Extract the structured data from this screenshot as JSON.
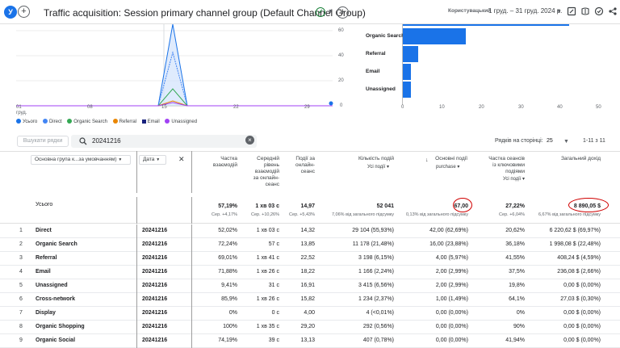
{
  "header": {
    "avatar_letter": "У",
    "title": "Traffic acquisition: Session primary channel group (Default Channel Group)",
    "user_label": "Користувацький",
    "date_range": "1 груд. – 31 груд. 2024 р."
  },
  "line_chart": {
    "x_ticks": [
      "01",
      "08",
      "15",
      "22",
      "29"
    ],
    "x_tick_sub": "груд.",
    "y_ticks": [
      "60",
      "40",
      "20",
      "0"
    ]
  },
  "bar_chart": {
    "categories": [
      "Organic Search",
      "Referral",
      "Email",
      "Unassigned"
    ],
    "values": [
      16,
      4,
      2,
      2
    ],
    "partial_top_value": 42,
    "x_ticks": [
      "0",
      "10",
      "20",
      "30",
      "40",
      "50"
    ]
  },
  "legend": [
    {
      "label": "Усього",
      "color": "#1a73e8"
    },
    {
      "label": "Direct",
      "color": "#4285f4"
    },
    {
      "label": "Organic Search",
      "color": "#34a853"
    },
    {
      "label": "Referral",
      "color": "#ea8600"
    },
    {
      "label": "Email",
      "color": "#1a237e"
    },
    {
      "label": "Unassigned",
      "color": "#a142f4"
    }
  ],
  "toolbar": {
    "rows_search_placeholder": "Вшукати рядки",
    "search_value": "20241216",
    "rows_per_page_label": "Рядків на сторінці:",
    "rows_per_page": "25",
    "pagination": "1-11 з 11"
  },
  "table": {
    "dim1_chip": "Основна група к...за умовчанням)",
    "dim2_chip": "Дата",
    "columns": [
      {
        "label": "Частка\nвзаємодій",
        "sub": ""
      },
      {
        "label": "Середній\nрівень\nвзаємодій\nза онлайн-\nсеанс",
        "sub": ""
      },
      {
        "label": "Події за\nонлайн-\nсеанс",
        "sub": ""
      },
      {
        "label": "Кількість подій",
        "sub": "Усі події"
      },
      {
        "label": "Основні події",
        "sub": "purchase"
      },
      {
        "label": "Частка сеансів\nіз ключовими\nподіями",
        "sub": "Усі події"
      },
      {
        "label": "Загальний дохід",
        "sub": ""
      }
    ],
    "total": {
      "label": "Усього",
      "values": [
        "57,19%",
        "1 хв 03 с",
        "14,97",
        "52 041",
        "67,00",
        "27,22%",
        "8 890,05 $"
      ],
      "subs": [
        "Сер. +4,17%",
        "Сер. +10,26%",
        "Сер. +5,43%",
        "7,06% від загального підсумку",
        "0,13% від загального підсумку",
        "Сер. +6,04%",
        "6,67% від загального підсумку"
      ]
    },
    "rows": [
      {
        "num": "1",
        "channel": "Direct",
        "date": "20241216",
        "values": [
          "52,02%",
          "1 хв 03 с",
          "14,32",
          "29 104 (55,93%)",
          "42,00 (62,69%)",
          "20,62%",
          "6 220,62 $ (69,97%)"
        ]
      },
      {
        "num": "2",
        "channel": "Organic Search",
        "date": "20241216",
        "values": [
          "72,24%",
          "57 с",
          "13,85",
          "11 178 (21,48%)",
          "16,00 (23,88%)",
          "36,18%",
          "1 998,08 $ (22,48%)"
        ]
      },
      {
        "num": "3",
        "channel": "Referral",
        "date": "20241216",
        "values": [
          "69,01%",
          "1 хв 41 с",
          "22,52",
          "3 198 (6,15%)",
          "4,00 (5,97%)",
          "41,55%",
          "408,24 $ (4,59%)"
        ]
      },
      {
        "num": "4",
        "channel": "Email",
        "date": "20241216",
        "values": [
          "71,88%",
          "1 хв 26 с",
          "18,22",
          "1 166 (2,24%)",
          "2,00 (2,99%)",
          "37,5%",
          "236,08 $ (2,66%)"
        ]
      },
      {
        "num": "5",
        "channel": "Unassigned",
        "date": "20241216",
        "values": [
          "9,41%",
          "31 с",
          "16,91",
          "3 415 (6,56%)",
          "2,00 (2,99%)",
          "19,8%",
          "0,00 $ (0,00%)"
        ]
      },
      {
        "num": "6",
        "channel": "Cross-network",
        "date": "20241216",
        "values": [
          "85,9%",
          "1 хв 26 с",
          "15,82",
          "1 234 (2,37%)",
          "1,00 (1,49%)",
          "64,1%",
          "27,03 $ (0,30%)"
        ]
      },
      {
        "num": "7",
        "channel": "Display",
        "date": "20241216",
        "values": [
          "0%",
          "0 с",
          "4,00",
          "4 (<0,01%)",
          "0,00 (0,00%)",
          "0%",
          "0,00 $ (0,00%)"
        ]
      },
      {
        "num": "8",
        "channel": "Organic Shopping",
        "date": "20241216",
        "values": [
          "100%",
          "1 хв 35 с",
          "29,20",
          "292 (0,56%)",
          "0,00 (0,00%)",
          "90%",
          "0,00 $ (0,00%)"
        ]
      },
      {
        "num": "9",
        "channel": "Organic Social",
        "date": "20241216",
        "values": [
          "74,19%",
          "39 с",
          "13,13",
          "407 (0,78%)",
          "0,00 (0,00%)",
          "41,94%",
          "0,00 $ (0,00%)"
        ]
      }
    ]
  }
}
